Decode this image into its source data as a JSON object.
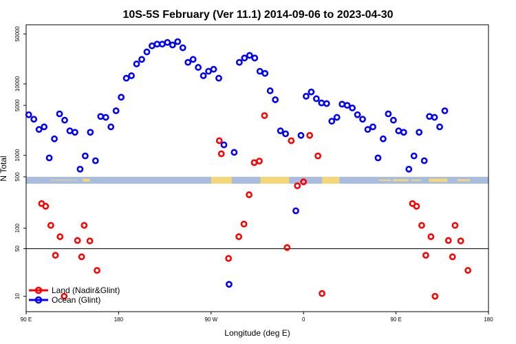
{
  "chart_data": {
    "type": "scatter",
    "title": "10S-5S February (Ver 11.1)   2014-09-06 to 2023-04-30",
    "xlabel": "Longitude (deg E)",
    "ylabel": "N Total",
    "x_ticks": [
      {
        "pos": 0,
        "label": "90 E"
      },
      {
        "pos": 90,
        "label": "180"
      },
      {
        "pos": 180,
        "label": "90 W"
      },
      {
        "pos": 270,
        "label": "0"
      },
      {
        "pos": 360,
        "label": "90 E"
      },
      {
        "pos": 450,
        "label": "180"
      }
    ],
    "xlim": [
      0,
      450
    ],
    "y_ticks_upper": [
      500,
      1000,
      5000,
      10000,
      50000
    ],
    "y_ticks_lower": [
      10,
      50,
      100
    ],
    "ylim_upper": [
      500,
      55000
    ],
    "ylim_lower": [
      7,
      440
    ],
    "reference_line": 50,
    "colors": {
      "land": "#ff0000",
      "ocean": "#0000ff",
      "map_water": "#a8bde0",
      "map_land": "#f5d77a"
    },
    "legend": {
      "position": "bottom-left",
      "items": [
        {
          "label": "Land (Nadir&Glint)",
          "color": "#ff0000"
        },
        {
          "label": "Ocean (Glint)",
          "color": "#0000ff"
        }
      ]
    },
    "series": [
      {
        "name": "Ocean (Glint)",
        "color": "#0000ff",
        "points": [
          [
            2.5,
            3700
          ],
          [
            7.5,
            3200
          ],
          [
            12.5,
            2300
          ],
          [
            17.5,
            2500
          ],
          [
            22.5,
            920
          ],
          [
            27.5,
            1700
          ],
          [
            32.5,
            3800
          ],
          [
            37.5,
            3100
          ],
          [
            42.5,
            2200
          ],
          [
            47.5,
            2100
          ],
          [
            52.5,
            640
          ],
          [
            57.5,
            980
          ],
          [
            62.5,
            2100
          ],
          [
            67.5,
            840
          ],
          [
            72.5,
            3500
          ],
          [
            77.5,
            3400
          ],
          [
            82.5,
            2500
          ],
          [
            87.5,
            4200
          ],
          [
            92.5,
            6500
          ],
          [
            97.5,
            12000
          ],
          [
            102.5,
            13000
          ],
          [
            107.5,
            19000
          ],
          [
            112.5,
            22000
          ],
          [
            117.5,
            28000
          ],
          [
            122.5,
            34000
          ],
          [
            127.5,
            36000
          ],
          [
            132.5,
            36000
          ],
          [
            137.5,
            38000
          ],
          [
            142.5,
            35000
          ],
          [
            147.5,
            39000
          ],
          [
            152.5,
            32000
          ],
          [
            157.5,
            20000
          ],
          [
            162.5,
            22000
          ],
          [
            167.5,
            17000
          ],
          [
            172.5,
            13000
          ],
          [
            177.5,
            15000
          ],
          [
            182.5,
            16000
          ],
          [
            187.5,
            12000
          ],
          [
            192.5,
            1400
          ],
          [
            197.5,
            15
          ],
          [
            202.5,
            1100
          ],
          [
            207.5,
            20000
          ],
          [
            212.5,
            23000
          ],
          [
            217.5,
            25000
          ],
          [
            222.5,
            23000
          ],
          [
            227.5,
            15000
          ],
          [
            232.5,
            14000
          ],
          [
            237.5,
            8000
          ],
          [
            242.5,
            6000
          ],
          [
            247.5,
            2200
          ],
          [
            252.5,
            2000
          ],
          [
            262.5,
            180
          ],
          [
            267.5,
            1900
          ],
          [
            272.5,
            6700
          ],
          [
            277.5,
            7700
          ],
          [
            282.5,
            6200
          ],
          [
            287.5,
            5400
          ],
          [
            292.5,
            5300
          ],
          [
            297.5,
            3000
          ],
          [
            302.5,
            3400
          ],
          [
            307.5,
            5200
          ],
          [
            312.5,
            5000
          ],
          [
            317.5,
            4600
          ],
          [
            322.5,
            3700
          ],
          [
            327.5,
            3200
          ],
          [
            332.5,
            2300
          ],
          [
            337.5,
            2500
          ],
          [
            342.5,
            920
          ],
          [
            347.5,
            1700
          ],
          [
            352.5,
            3800
          ],
          [
            357.5,
            3100
          ],
          [
            362.5,
            2200
          ],
          [
            367.5,
            2100
          ],
          [
            372.5,
            640
          ],
          [
            377.5,
            980
          ],
          [
            382.5,
            2100
          ],
          [
            387.5,
            840
          ],
          [
            392.5,
            3500
          ],
          [
            397.5,
            3400
          ],
          [
            402.5,
            2500
          ],
          [
            407.5,
            4200
          ]
        ]
      },
      {
        "name": "Land (Nadir&Glint)",
        "color": "#ff0000",
        "points": [
          [
            15,
            230
          ],
          [
            19,
            210
          ],
          [
            24,
            110
          ],
          [
            28.5,
            40
          ],
          [
            33,
            75
          ],
          [
            37,
            10
          ],
          [
            50,
            66
          ],
          [
            54,
            38
          ],
          [
            56.5,
            110
          ],
          [
            62,
            65
          ],
          [
            69,
            24
          ],
          [
            188,
            1600
          ],
          [
            190,
            1050
          ],
          [
            197,
            36
          ],
          [
            207,
            75
          ],
          [
            212,
            115
          ],
          [
            217,
            310
          ],
          [
            222,
            790
          ],
          [
            227,
            830
          ],
          [
            232,
            3600
          ],
          [
            254,
            52
          ],
          [
            258,
            1600
          ],
          [
            264,
            420
          ],
          [
            270,
            480
          ],
          [
            276,
            1900
          ],
          [
            284,
            980
          ],
          [
            288,
            11
          ],
          [
            376,
            230
          ],
          [
            380,
            210
          ],
          [
            385,
            110
          ],
          [
            389,
            40
          ],
          [
            394,
            75
          ],
          [
            398,
            10
          ],
          [
            411,
            66
          ],
          [
            415,
            38
          ],
          [
            417.5,
            110
          ],
          [
            423,
            65
          ],
          [
            430,
            24
          ]
        ]
      }
    ]
  }
}
